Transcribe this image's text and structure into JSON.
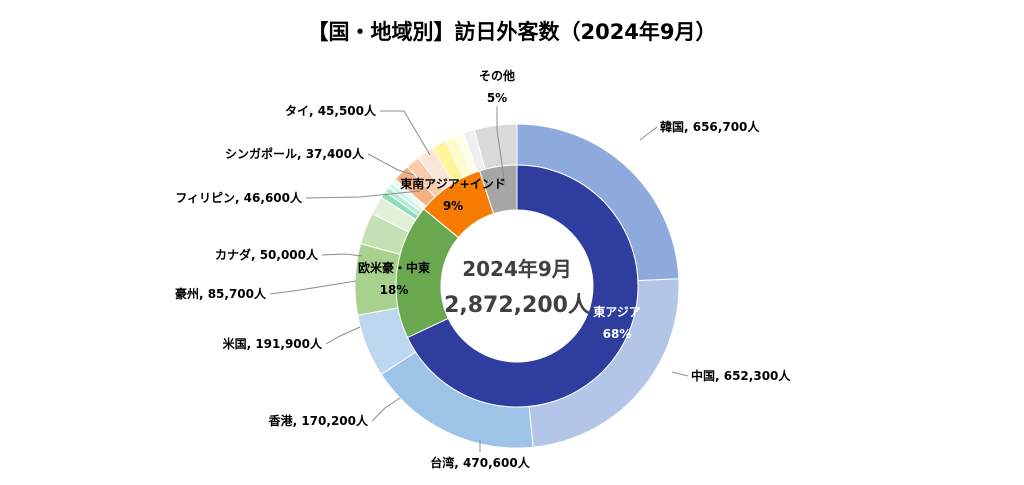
{
  "chart_data": {
    "type": "donut",
    "title": "【国・地域別】訪日外客数（2024年9月）",
    "center": {
      "line1": "2024年9月",
      "line2": "2,872,200人"
    },
    "inner": [
      {
        "name": "東アジア",
        "pct": "68%",
        "value": 68,
        "color": "#2e3d9e"
      },
      {
        "name": "欧米豪・中東",
        "pct": "18%",
        "value": 18,
        "color": "#6aa84f"
      },
      {
        "name": "東南アジア+インド",
        "pct": "9%",
        "value": 9,
        "color": "#f57c00"
      },
      {
        "name": "その他",
        "pct": "5%",
        "value": 5,
        "color": "#a6a6a6"
      }
    ],
    "outer": [
      {
        "label": "韓国, 656,700人",
        "value": 656700,
        "color": "#8eaadc",
        "group": "東アジア"
      },
      {
        "label": "中国, 652,300人",
        "value": 652300,
        "color": "#b4c6e7",
        "group": "東アジア"
      },
      {
        "label": "台湾, 470,600人",
        "value": 470600,
        "color": "#9dc3e6",
        "group": "東アジア"
      },
      {
        "label": "香港, 170,200人",
        "value": 170200,
        "color": "#bdd7ee",
        "group": "東アジア"
      },
      {
        "label": "米国, 191,900人",
        "value": 191900,
        "color": "#a9d18e",
        "group": "欧米豪・中東"
      },
      {
        "label": "豪州, 85,700人",
        "value": 85700,
        "color": "#c5e0b4",
        "group": "欧米豪・中東"
      },
      {
        "label": "カナダ, 50,000人",
        "value": 50000,
        "color": "#e2f0d9",
        "group": "欧米豪・中東"
      },
      {
        "label": "",
        "value": 18000,
        "color": "#8fdcb8",
        "group": "欧米豪・中東"
      },
      {
        "label": "",
        "value": 15000,
        "color": "#b5ebd2",
        "group": "欧米豪・中東"
      },
      {
        "label": "",
        "value": 14000,
        "color": "#d2f4e4",
        "group": "欧米豪・中東"
      },
      {
        "label": "",
        "value": 13000,
        "color": "#e8faf1",
        "group": "欧米豪・中東"
      },
      {
        "label": "フィリピン, 46,600人",
        "value": 46600,
        "color": "#f4b183",
        "group": "東南アジア+インド"
      },
      {
        "label": "シンガポール, 37,400人",
        "value": 37400,
        "color": "#f8cbad",
        "group": "東南アジア+インド"
      },
      {
        "label": "タイ, 45,500人",
        "value": 45500,
        "color": "#fbe5d6",
        "group": "東南アジア+インド"
      },
      {
        "label": "",
        "value": 40000,
        "color": "#fff59d",
        "group": "東南アジア+インド"
      },
      {
        "label": "",
        "value": 30000,
        "color": "#fffbcc",
        "group": "東南アジア+インド"
      },
      {
        "label": "",
        "value": 22000,
        "color": "#ffffe6",
        "group": "東南アジア+インド"
      },
      {
        "label": "",
        "value": 30000,
        "color": "#efefef",
        "group": "その他"
      },
      {
        "label": "",
        "value": 115000,
        "color": "#d9d9d9",
        "group": "その他"
      }
    ]
  }
}
